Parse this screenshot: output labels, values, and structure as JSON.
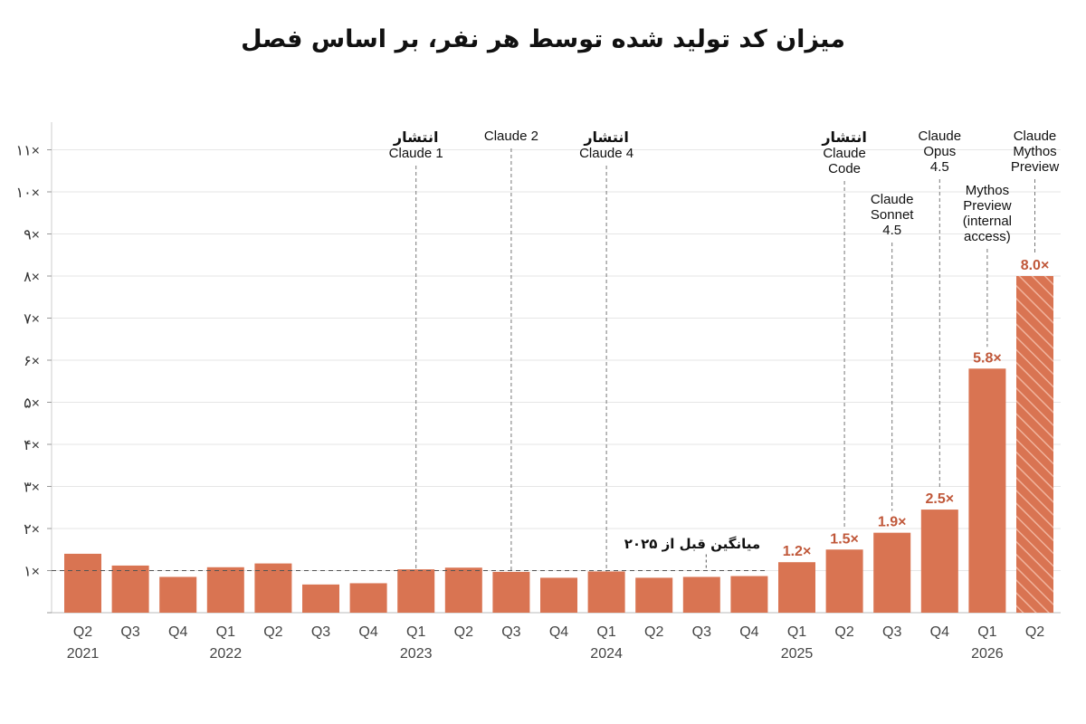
{
  "chart_data": {
    "type": "bar",
    "title": "میزان کد تولید شده توسط هر نفر، بر اساس فصل",
    "y_unit": "×",
    "ylim": [
      0,
      11
    ],
    "y_ticks": [
      {
        "value": 1,
        "label": "۱×"
      },
      {
        "value": 2,
        "label": "۲×"
      },
      {
        "value": 3,
        "label": "۳×"
      },
      {
        "value": 4,
        "label": "۴×"
      },
      {
        "value": 5,
        "label": "۵×"
      },
      {
        "value": 6,
        "label": "۶×"
      },
      {
        "value": 7,
        "label": "۷×"
      },
      {
        "value": 8,
        "label": "۸×"
      },
      {
        "value": 9,
        "label": "۹×"
      },
      {
        "value": 10,
        "label": "۱۰×"
      },
      {
        "value": 11,
        "label": "۱۱×"
      }
    ],
    "grid": true,
    "bar_color": "#d97452",
    "label_color": "#c0583a",
    "categories": [
      "Q2",
      "Q3",
      "Q4",
      "Q1",
      "Q2",
      "Q3",
      "Q4",
      "Q1",
      "Q2",
      "Q3",
      "Q4",
      "Q1",
      "Q2",
      "Q3",
      "Q4",
      "Q1",
      "Q2",
      "Q3",
      "Q4",
      "Q1",
      "Q2"
    ],
    "values": [
      1.4,
      1.12,
      0.85,
      1.08,
      1.17,
      0.67,
      0.7,
      1.03,
      1.07,
      0.97,
      0.83,
      0.98,
      0.83,
      0.85,
      0.87,
      1.2,
      1.5,
      1.9,
      2.45,
      5.8,
      8.0
    ],
    "value_labels": [
      "",
      "",
      "",
      "",
      "",
      "",
      "",
      "",
      "",
      "",
      "",
      "",
      "",
      "",
      "",
      "1.2×",
      "1.5×",
      "1.9×",
      "2.5×",
      "5.8×",
      "8.0×"
    ],
    "hatched": [
      false,
      false,
      false,
      false,
      false,
      false,
      false,
      false,
      false,
      false,
      false,
      false,
      false,
      false,
      false,
      false,
      false,
      false,
      false,
      false,
      true
    ],
    "years": [
      {
        "label": "2021",
        "index": 0
      },
      {
        "label": "2022",
        "index": 3
      },
      {
        "label": "2023",
        "index": 7
      },
      {
        "label": "2024",
        "index": 11
      },
      {
        "label": "2025",
        "index": 15
      },
      {
        "label": "2026",
        "index": 19
      }
    ],
    "average_line": {
      "value": 1.0,
      "label": "میانگین قبل از ۲۰۲۵"
    },
    "annotations": [
      {
        "index": 7,
        "lines": [
          "انتشار",
          "Claude 1"
        ]
      },
      {
        "index": 9,
        "lines": [
          "Claude 2"
        ]
      },
      {
        "index": 11,
        "lines": [
          "انتشار",
          "Claude 4"
        ]
      },
      {
        "index": 16,
        "lines": [
          "انتشار",
          "Claude",
          "Code"
        ]
      },
      {
        "index": 17,
        "lines": [
          "Claude",
          "Sonnet",
          "4.5"
        ]
      },
      {
        "index": 18,
        "lines": [
          "Claude",
          "Opus",
          "4.5"
        ]
      },
      {
        "index": 19,
        "lines": [
          "Mythos",
          "Preview",
          "(internal",
          "access)"
        ]
      },
      {
        "index": 20,
        "lines": [
          "Claude",
          "Mythos",
          "Preview"
        ]
      }
    ]
  }
}
